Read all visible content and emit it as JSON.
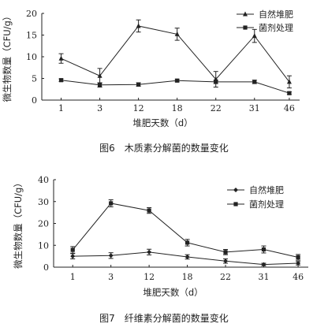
{
  "chart_data": [
    {
      "type": "line",
      "categories": [
        "1",
        "3",
        "12",
        "18",
        "22",
        "31",
        "46"
      ],
      "ylim": [
        0,
        20
      ],
      "yticks": [
        "0",
        "5",
        "10",
        "15",
        "20"
      ],
      "ylabel": "微生物数量（CFU/g）",
      "xlabel": "堆肥天数（d）",
      "caption": "图6　木质素分解菌的数量变化",
      "legend_position": "top-right",
      "series": [
        {
          "name": "自然堆肥",
          "marker": "triangle",
          "values": [
            9.6,
            5.6,
            17.1,
            15.2,
            4.8,
            14.8,
            4.2
          ],
          "errors": [
            1.1,
            1.7,
            1.4,
            1.4,
            1.8,
            1.5,
            1.4
          ]
        },
        {
          "name": "菌剂处理",
          "marker": "square",
          "values": [
            4.6,
            3.5,
            3.6,
            4.5,
            4.2,
            4.2,
            1.6
          ],
          "errors": [
            0.3,
            0.5,
            0.4,
            0.3,
            0.4,
            0.4,
            0.3
          ]
        }
      ]
    },
    {
      "type": "line",
      "categories": [
        "1",
        "3",
        "12",
        "18",
        "22",
        "31",
        "46"
      ],
      "ylim": [
        0,
        40
      ],
      "yticks": [
        "0",
        "10",
        "20",
        "30",
        "40"
      ],
      "ylabel": "微生物数量（CFU/g）",
      "xlabel": "堆肥天数（d）",
      "caption": "图7　纤维素分解菌的数量变化",
      "legend_position": "top-right",
      "series": [
        {
          "name": "自然堆肥",
          "marker": "diamond",
          "values": [
            5.0,
            5.3,
            6.9,
            4.7,
            2.8,
            1.2,
            1.8
          ],
          "errors": [
            1.2,
            1.3,
            1.3,
            1.0,
            1.0,
            0.6,
            0.8
          ]
        },
        {
          "name": "菌剂处理",
          "marker": "square",
          "values": [
            7.9,
            29.2,
            25.9,
            11.2,
            6.9,
            8.1,
            4.5
          ],
          "errors": [
            1.5,
            1.6,
            1.3,
            1.5,
            1.2,
            1.6,
            1.3
          ]
        }
      ]
    }
  ]
}
